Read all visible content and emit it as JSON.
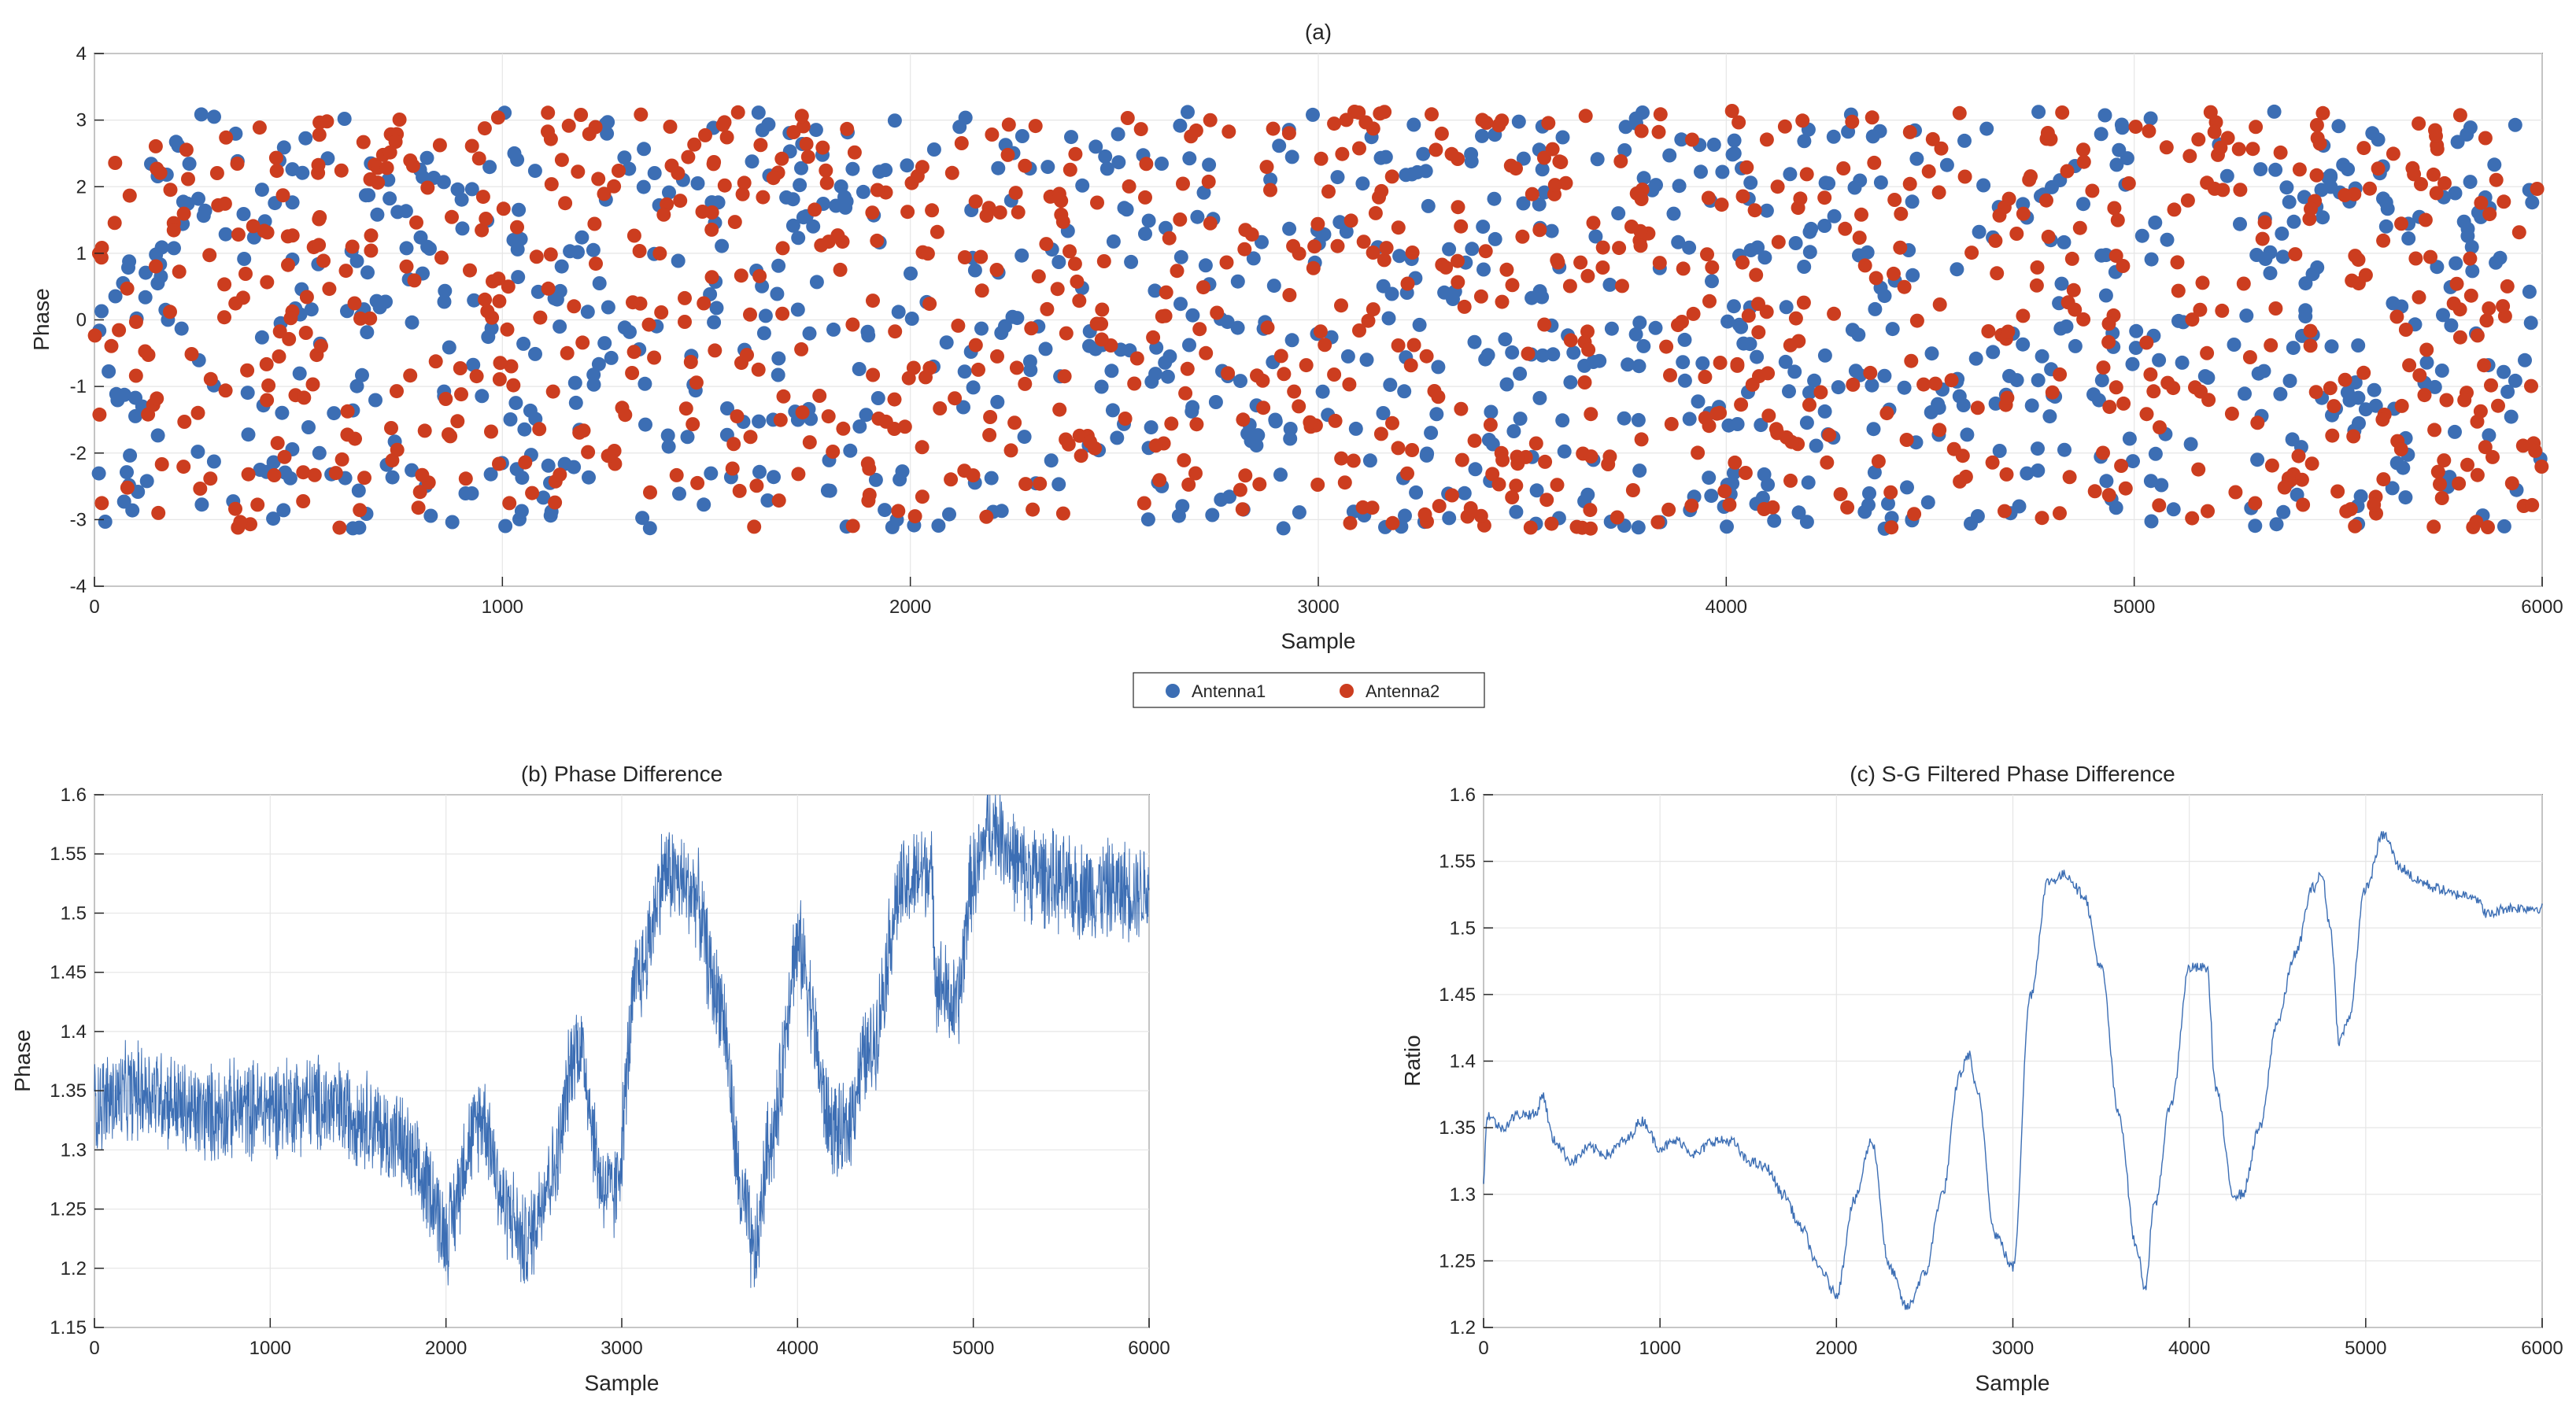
{
  "chart_data": [
    {
      "id": "a",
      "type": "scatter",
      "title": "(a)",
      "xlabel": "Sample",
      "ylabel": "Phase",
      "xlim": [
        0,
        6000
      ],
      "ylim": [
        -4,
        4
      ],
      "xticks": [
        0,
        1000,
        2000,
        3000,
        4000,
        5000,
        6000
      ],
      "yticks": [
        -4,
        -3,
        -2,
        -1,
        0,
        1,
        2,
        3,
        4
      ],
      "grid": true,
      "legend": "bottom-center",
      "series": [
        {
          "name": "Antenna1",
          "color": "#3c6eb4",
          "points": 1000,
          "value_range": [
            -3.14,
            3.14
          ],
          "x_range": [
            0,
            6000
          ],
          "distribution": "uniform-random wrapped phase"
        },
        {
          "name": "Antenna2",
          "color": "#cc3d1f",
          "points": 1000,
          "value_range": [
            -3.14,
            3.14
          ],
          "x_range": [
            0,
            6000
          ],
          "distribution": "uniform-random wrapped phase"
        }
      ]
    },
    {
      "id": "b",
      "type": "line",
      "title": "(b) Phase Difference",
      "xlabel": "Sample",
      "ylabel": "Phase",
      "xlim": [
        0,
        6000
      ],
      "ylim": [
        1.15,
        1.6
      ],
      "xticks": [
        0,
        1000,
        2000,
        3000,
        4000,
        5000,
        6000
      ],
      "yticks": [
        1.15,
        1.2,
        1.25,
        1.3,
        1.35,
        1.4,
        1.45,
        1.5,
        1.55,
        1.6
      ],
      "grid": true,
      "color": "#3c6eb4",
      "noise_amplitude": 0.04,
      "x": [
        0,
        300,
        600,
        900,
        1200,
        1500,
        1700,
        1900,
        2000,
        2150,
        2200,
        2350,
        2450,
        2600,
        2750,
        2900,
        2950,
        3100,
        3250,
        3400,
        3550,
        3700,
        3750,
        3850,
        4000,
        4200,
        4250,
        4400,
        4600,
        4750,
        4800,
        4900,
        5000,
        5100,
        5300,
        5600,
        6000
      ],
      "y": [
        1.34,
        1.35,
        1.33,
        1.335,
        1.34,
        1.33,
        1.31,
        1.27,
        1.23,
        1.31,
        1.33,
        1.25,
        1.22,
        1.28,
        1.39,
        1.27,
        1.26,
        1.45,
        1.535,
        1.52,
        1.43,
        1.25,
        1.21,
        1.31,
        1.47,
        1.32,
        1.31,
        1.38,
        1.52,
        1.54,
        1.44,
        1.42,
        1.53,
        1.575,
        1.535,
        1.52,
        1.52
      ]
    },
    {
      "id": "c",
      "type": "line",
      "title": "(c) S-G Filtered Phase Difference",
      "xlabel": "Sample",
      "ylabel": "Ratio",
      "xlim": [
        0,
        6000
      ],
      "ylim": [
        1.2,
        1.6
      ],
      "xticks": [
        0,
        1000,
        2000,
        3000,
        4000,
        5000,
        6000
      ],
      "yticks": [
        1.2,
        1.25,
        1.3,
        1.35,
        1.4,
        1.45,
        1.5,
        1.55,
        1.6
      ],
      "grid": true,
      "color": "#3c6eb4",
      "x": [
        0,
        20,
        100,
        200,
        300,
        330,
        400,
        500,
        600,
        700,
        800,
        900,
        1000,
        1100,
        1200,
        1300,
        1400,
        1500,
        1600,
        1700,
        1800,
        1900,
        2000,
        2100,
        2200,
        2300,
        2400,
        2500,
        2600,
        2700,
        2750,
        2800,
        2900,
        3000,
        3100,
        3200,
        3300,
        3400,
        3500,
        3600,
        3700,
        3750,
        3800,
        3900,
        4000,
        4100,
        4150,
        4250,
        4300,
        4400,
        4500,
        4600,
        4700,
        4750,
        4800,
        4850,
        4900,
        5000,
        5100,
        5200,
        5300,
        5400,
        5500,
        5600,
        5700,
        5800,
        5900,
        6000
      ],
      "y": [
        1.31,
        1.36,
        1.35,
        1.36,
        1.36,
        1.375,
        1.34,
        1.325,
        1.335,
        1.33,
        1.34,
        1.355,
        1.335,
        1.34,
        1.33,
        1.34,
        1.34,
        1.325,
        1.32,
        1.3,
        1.275,
        1.245,
        1.225,
        1.295,
        1.34,
        1.245,
        1.215,
        1.24,
        1.3,
        1.39,
        1.405,
        1.375,
        1.27,
        1.245,
        1.45,
        1.535,
        1.54,
        1.525,
        1.47,
        1.36,
        1.26,
        1.23,
        1.29,
        1.37,
        1.47,
        1.47,
        1.38,
        1.3,
        1.3,
        1.35,
        1.43,
        1.48,
        1.53,
        1.54,
        1.5,
        1.415,
        1.43,
        1.53,
        1.57,
        1.545,
        1.535,
        1.53,
        1.525,
        1.525,
        1.51,
        1.515,
        1.515,
        1.515
      ]
    }
  ],
  "legend": {
    "entries": [
      {
        "label": "Antenna1",
        "color": "#3c6eb4"
      },
      {
        "label": "Antenna2",
        "color": "#cc3d1f"
      }
    ]
  }
}
